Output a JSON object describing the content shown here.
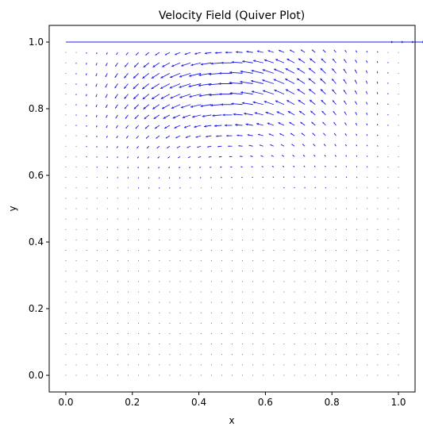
{
  "chart_data": {
    "type": "quiver",
    "title": "Velocity Field (Quiver Plot)",
    "xlabel": "x",
    "ylabel": "y",
    "xlim": [
      -0.05,
      1.05
    ],
    "ylim": [
      -0.05,
      1.05
    ],
    "xticks": [
      "0.0",
      "0.2",
      "0.4",
      "0.6",
      "0.8",
      "1.0"
    ],
    "yticks": [
      "0.0",
      "0.2",
      "0.4",
      "0.6",
      "0.8",
      "1.0"
    ],
    "grid": false,
    "arrow_color": "#1f1fe6",
    "field": {
      "description": "lid-driven cavity flow",
      "grid_x": [
        0.0,
        1.0
      ],
      "grid_y": [
        0.0,
        1.0
      ],
      "nx": 33,
      "ny": 33,
      "lid_velocity": 1.0
    }
  }
}
